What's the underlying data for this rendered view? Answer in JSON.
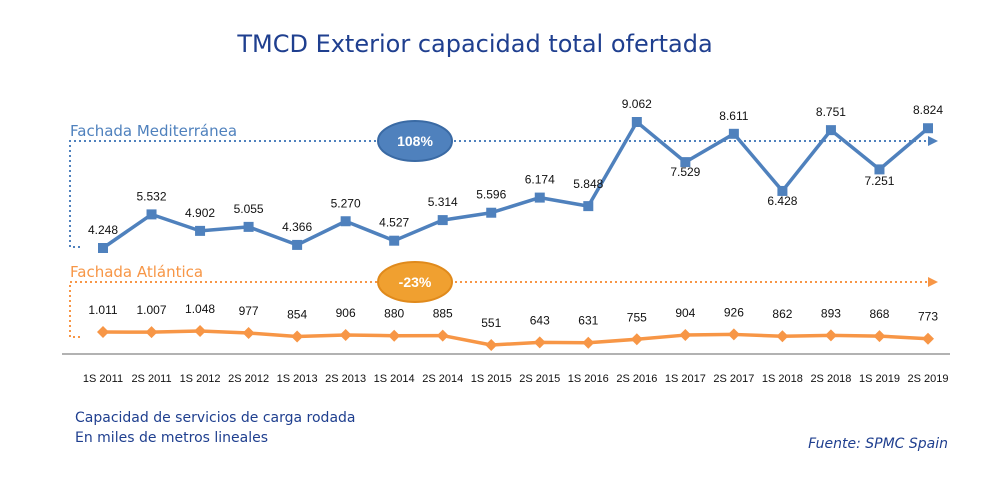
{
  "chart_data": {
    "type": "line",
    "title": "TMCD Exterior capacidad total ofertada",
    "xlabel": "",
    "ylabel": "",
    "grid": false,
    "categories": [
      "1S 2011",
      "2S 2011",
      "1S 2012",
      "2S 2012",
      "1S 2013",
      "2S 2013",
      "1S 2014",
      "2S 2014",
      "1S 2015",
      "2S 2015",
      "1S 2016",
      "2S 2016",
      "1S 2017",
      "2S 2017",
      "1S 2018",
      "2S 2018",
      "1S 2019",
      "2S 2019"
    ],
    "series": [
      {
        "name": "Fachada Mediterránea",
        "color": "#4f81bd",
        "marker": "square",
        "growth_label": "108%",
        "values": [
          4248,
          5532,
          4902,
          5055,
          4366,
          5270,
          4527,
          5314,
          5596,
          6174,
          5848,
          9062,
          7529,
          8611,
          6428,
          8751,
          7251,
          8824
        ],
        "value_labels": [
          "4.248",
          "5.532",
          "4.902",
          "5.055",
          "4.366",
          "5.270",
          "4.527",
          "5.314",
          "5.596",
          "6.174",
          "5.848",
          "9.062",
          "7.529",
          "8.611",
          "6.428",
          "8.751",
          "7.251",
          "8.824"
        ]
      },
      {
        "name": "Fachada Atlántica",
        "color": "#f79646",
        "marker": "diamond",
        "growth_label": "-23%",
        "values": [
          1011,
          1007,
          1048,
          977,
          854,
          906,
          880,
          885,
          551,
          643,
          631,
          755,
          904,
          926,
          862,
          893,
          868,
          773
        ],
        "value_labels": [
          "1.011",
          "1.007",
          "1.048",
          "977",
          "854",
          "906",
          "880",
          "885",
          "551",
          "643",
          "631",
          "755",
          "904",
          "926",
          "862",
          "893",
          "868",
          "773"
        ]
      }
    ],
    "notes": [
      "Capacidad de servicios de carga rodada",
      "En miles de metros lineales"
    ],
    "source": "Fuente: SPMC Spain"
  }
}
